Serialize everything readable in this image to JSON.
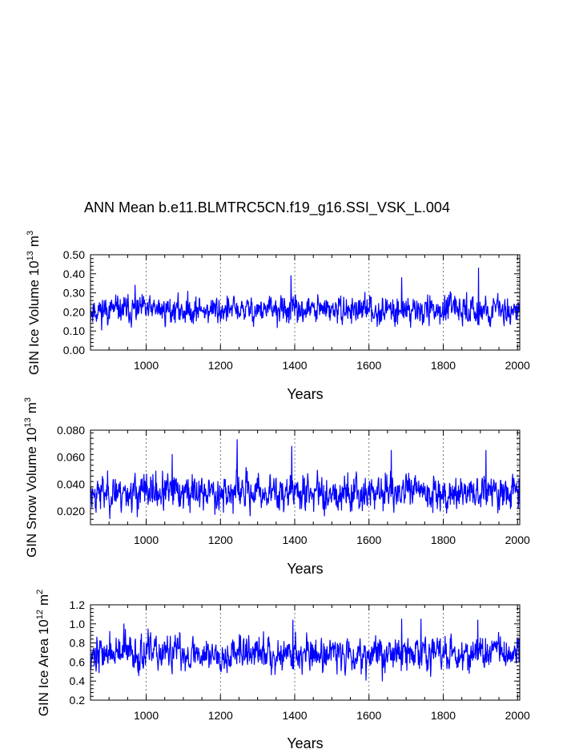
{
  "title": "ANN Mean b.e11.BLMTRC5CN.f19_g16.SSI_VSK_L.004",
  "chart_data": [
    {
      "type": "line",
      "ylabel": "GIN Ice Volume 10",
      "ylabel_sup": "13",
      "ylabel_unit": "m",
      "ylabel_unit_sup": "3",
      "xlabel": "Years",
      "xlim": [
        850,
        2006
      ],
      "ylim": [
        0.0,
        0.5
      ],
      "yticks": [
        "0.00",
        "0.10",
        "0.20",
        "0.30",
        "0.40",
        "0.50"
      ],
      "xticks": [
        "1000",
        "1200",
        "1400",
        "1600",
        "1800",
        "2000"
      ],
      "grid_x": [
        1000,
        1200,
        1400,
        1600,
        1800,
        2000
      ],
      "series": [
        {
          "name": "GIN Ice Volume",
          "color": "#0000ff",
          "mean": 0.21,
          "sd": 0.035,
          "peaks": [
            [
              1390,
              0.39
            ],
            [
              1895,
              0.43
            ],
            [
              1688,
              0.38
            ],
            [
              970,
              0.34
            ]
          ],
          "seed": 11
        }
      ]
    },
    {
      "type": "line",
      "ylabel": "GIN Snow Volume 10",
      "ylabel_sup": "13",
      "ylabel_unit": "m",
      "ylabel_unit_sup": "3",
      "xlabel": "Years",
      "xlim": [
        850,
        2006
      ],
      "ylim": [
        0.01,
        0.08
      ],
      "yticks": [
        "0.020",
        "0.040",
        "0.060",
        "0.080"
      ],
      "xticks": [
        "1000",
        "1200",
        "1400",
        "1600",
        "1800",
        "2000"
      ],
      "grid_x": [
        1000,
        1200,
        1400,
        1600,
        1800,
        2000
      ],
      "series": [
        {
          "name": "GIN Snow Volume",
          "color": "#0000ff",
          "mean": 0.034,
          "sd": 0.0065,
          "peaks": [
            [
              1245,
              0.073
            ],
            [
              1392,
              0.068
            ],
            [
              1915,
              0.065
            ],
            [
              1660,
              0.065
            ],
            [
              1070,
              0.062
            ]
          ],
          "seed": 23
        }
      ]
    },
    {
      "type": "line",
      "ylabel": "GIN Ice Area 10",
      "ylabel_sup": "12",
      "ylabel_unit": "m",
      "ylabel_unit_sup": "2",
      "xlabel": "Years",
      "xlim": [
        850,
        2006
      ],
      "ylim": [
        0.2,
        1.2
      ],
      "yticks": [
        "0.2",
        "0.4",
        "0.6",
        "0.8",
        "1.0",
        "1.2"
      ],
      "xticks": [
        "1000",
        "1200",
        "1400",
        "1600",
        "1800",
        "2000"
      ],
      "grid_x": [
        1000,
        1200,
        1400,
        1600,
        1800,
        2000
      ],
      "series": [
        {
          "name": "GIN Ice Area",
          "color": "#0000ff",
          "mean": 0.69,
          "sd": 0.09,
          "peaks": [
            [
              1395,
              1.04
            ],
            [
              1688,
              1.05
            ],
            [
              1740,
              1.05
            ],
            [
              1893,
              1.04
            ],
            [
              940,
              1.0
            ]
          ],
          "seed": 37
        }
      ]
    }
  ]
}
